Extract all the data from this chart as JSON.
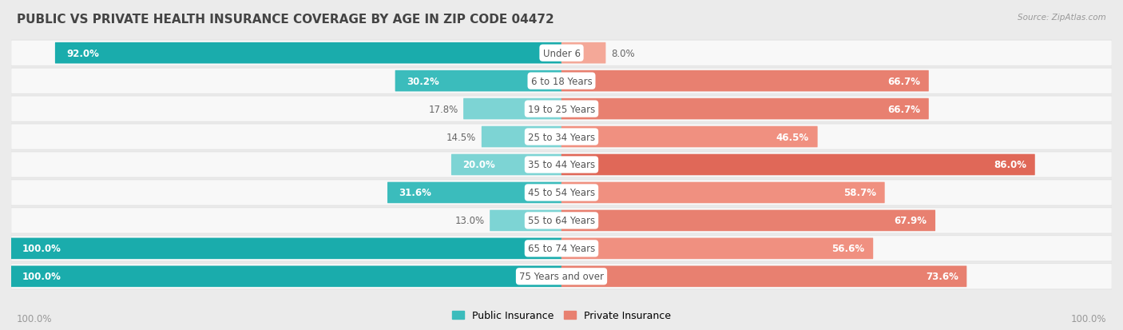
{
  "title": "PUBLIC VS PRIVATE HEALTH INSURANCE COVERAGE BY AGE IN ZIP CODE 04472",
  "source": "Source: ZipAtlas.com",
  "categories": [
    "Under 6",
    "6 to 18 Years",
    "19 to 25 Years",
    "25 to 34 Years",
    "35 to 44 Years",
    "45 to 54 Years",
    "55 to 64 Years",
    "65 to 74 Years",
    "75 Years and over"
  ],
  "public_values": [
    92.0,
    30.2,
    17.8,
    14.5,
    20.0,
    31.6,
    13.0,
    100.0,
    100.0
  ],
  "private_values": [
    8.0,
    66.7,
    66.7,
    46.5,
    86.0,
    58.7,
    67.9,
    56.6,
    73.6
  ],
  "public_color": "#3BBCBC",
  "private_color": "#E88070",
  "private_color_light": "#F0A898",
  "bg_color": "#ebebeb",
  "row_bg_color": "#f8f8f8",
  "bar_height": 0.68,
  "title_fontsize": 11,
  "label_fontsize": 8.5,
  "value_fontsize": 8.5,
  "legend_fontsize": 9,
  "footer_fontsize": 8.5,
  "max_value": 100.0,
  "pub_inside_threshold": 20,
  "priv_inside_threshold": 20
}
